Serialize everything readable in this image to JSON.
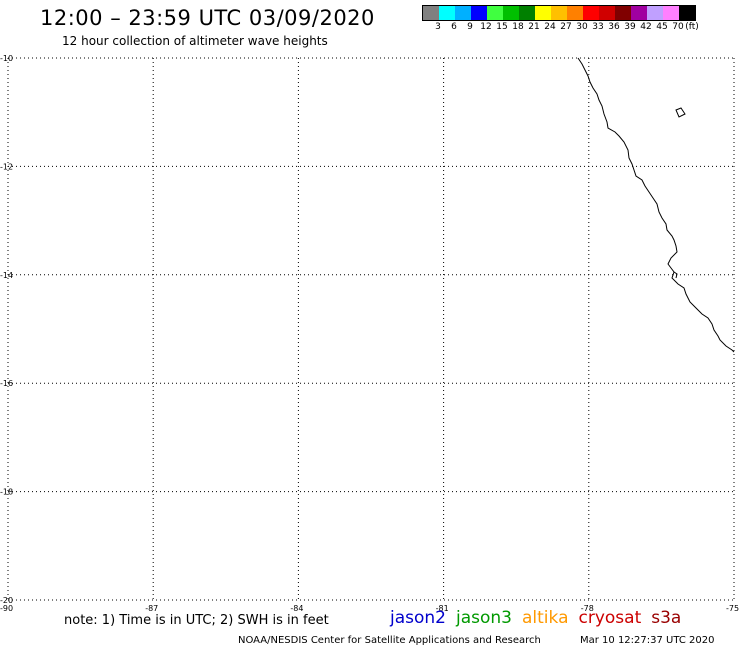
{
  "header": {
    "title": "12:00 – 23:59 UTC 03/09/2020",
    "subtitle": "12 hour collection of altimeter wave heights"
  },
  "legend": {
    "colors": [
      "#808080",
      "#00ffff",
      "#00b0ff",
      "#0000ff",
      "#40ff40",
      "#00c000",
      "#008000",
      "#ffff00",
      "#ffc000",
      "#ff8000",
      "#ff0000",
      "#d00000",
      "#800000",
      "#a000a0",
      "#c0a0ff",
      "#ff80ff",
      "#000000"
    ],
    "labels": [
      "3",
      "6",
      "9",
      "12",
      "15",
      "18",
      "21",
      "24",
      "27",
      "30",
      "33",
      "36",
      "39",
      "42",
      "45",
      "70"
    ],
    "unit": "(ft)"
  },
  "map": {
    "lon_range": [
      -90,
      -75
    ],
    "lat_range": [
      -20,
      -10
    ],
    "lon_ticks": [
      "-90",
      "-87",
      "-84",
      "-81",
      "-78",
      "-75"
    ],
    "lat_ticks": [
      "-10",
      "-12",
      "-14",
      "-16",
      "-18",
      "-20"
    ],
    "grid": "dotted"
  },
  "footer": {
    "note": "note: 1) Time is in UTC; 2) SWH is in feet",
    "satellites": [
      {
        "name": "jason2",
        "color": "#0000cc"
      },
      {
        "name": "jason3",
        "color": "#009900"
      },
      {
        "name": "altika",
        "color": "#ff9900"
      },
      {
        "name": "cryosat",
        "color": "#cc0000"
      },
      {
        "name": "s3a",
        "color": "#990000"
      }
    ],
    "credit": "NOAA/NESDIS Center for Satellite Applications and Research",
    "timestamp": "Mar 10 12:27:37 UTC 2020"
  }
}
